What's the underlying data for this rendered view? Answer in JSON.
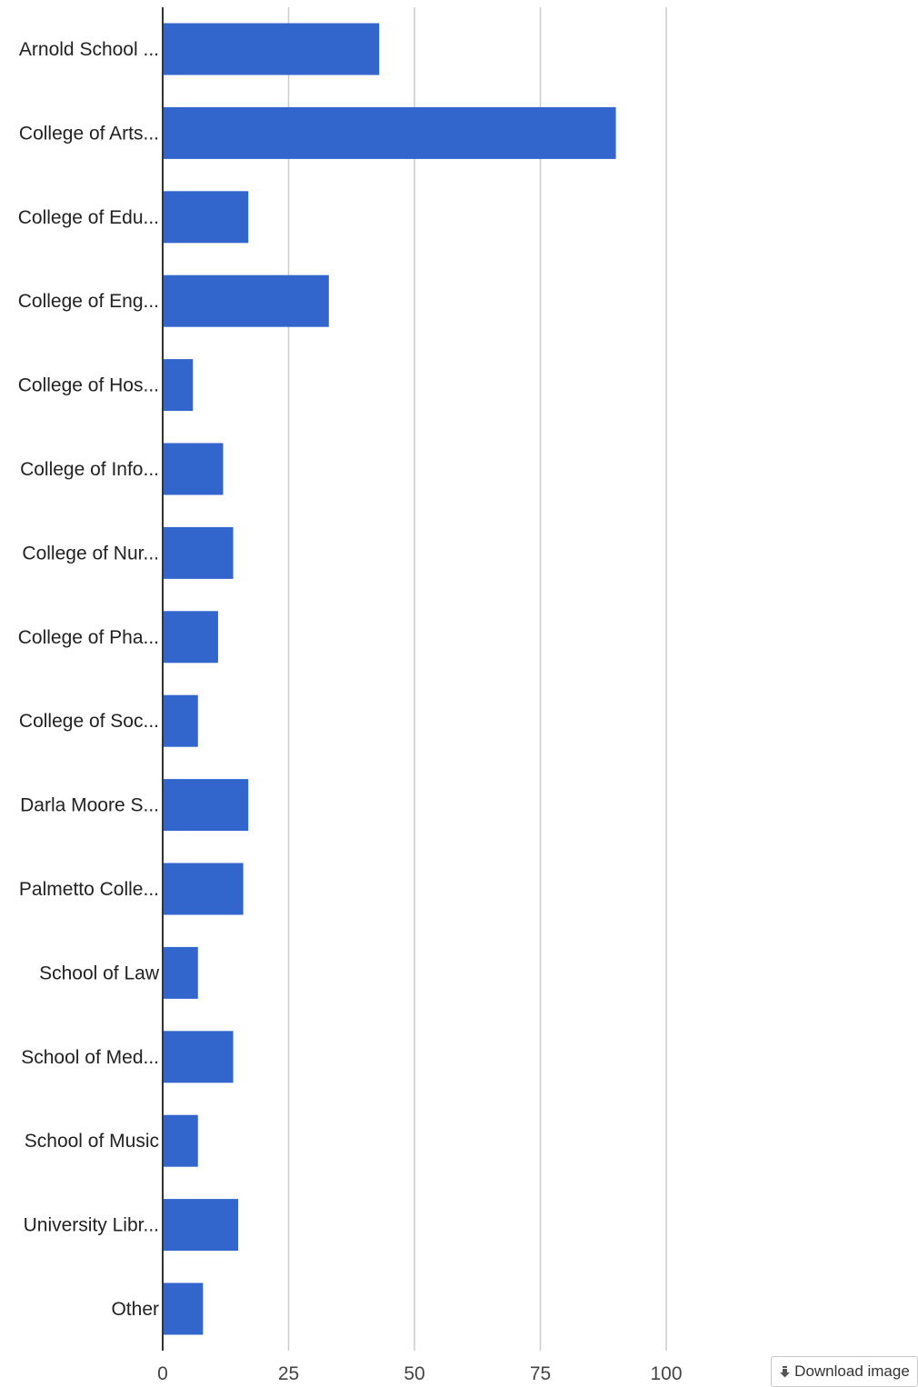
{
  "chart_data": {
    "type": "bar",
    "orientation": "horizontal",
    "categories": [
      "Arnold School ...",
      "College of Arts...",
      "College of Edu...",
      "College of Eng...",
      "College of Hos...",
      "College of Info...",
      "College of Nur...",
      "College of Pha...",
      "College of Soc...",
      "Darla Moore S...",
      "Palmetto Colle...",
      "School of Law",
      "School of Med...",
      "School of Music",
      "University Libr...",
      "Other"
    ],
    "values": [
      43,
      90,
      17,
      33,
      6,
      12,
      14,
      11,
      7,
      17,
      16,
      7,
      14,
      7,
      15,
      8
    ],
    "xlim": [
      0,
      100
    ],
    "xticks": [
      "0",
      "25",
      "50",
      "75",
      "100"
    ],
    "grid": true,
    "bar_color": "#3366cc",
    "grid_color": "#cccccc",
    "axis_color": "#333333"
  },
  "controls": {
    "download_label": "Download image",
    "download_icon": "download-arrow-icon"
  }
}
